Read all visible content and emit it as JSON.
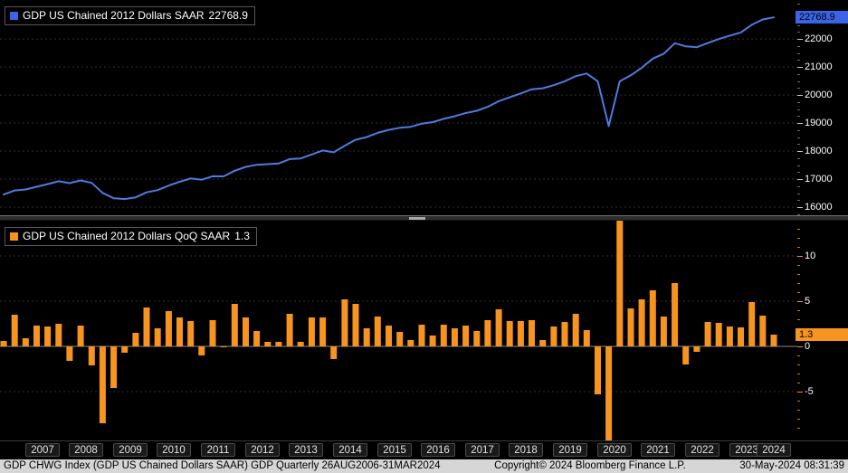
{
  "colors": {
    "background": "#000000",
    "line_blue": "#4d7ce0",
    "accent_blue": "#3b64e6",
    "bar_orange": "#f79420",
    "grid": "#303030",
    "zero_line": "#8a8a8a",
    "status_bar_bg": "#d6d6d6"
  },
  "top_panel": {
    "legend_label": "GDP US Chained 2012 Dollars SAAR",
    "legend_value": "22768.9",
    "last_value": "22768.9",
    "axis_ticks": [
      16000,
      17000,
      18000,
      19000,
      20000,
      21000,
      22000
    ]
  },
  "bottom_panel": {
    "legend_label": "GDP US Chained 2012 Dollars QoQ SAAR",
    "legend_value": "1.3",
    "last_value": "1.3",
    "axis_ticks": [
      -5,
      0,
      5,
      10
    ]
  },
  "x_axis": {
    "years": [
      "2007",
      "2008",
      "2009",
      "2010",
      "2011",
      "2012",
      "2013",
      "2014",
      "2015",
      "2016",
      "2017",
      "2018",
      "2019",
      "2020",
      "2021",
      "2022",
      "2023",
      "2024"
    ]
  },
  "status_bar": {
    "left": "GDP CHWG Index (GDP US Chained Dollars SAAR) GDP  Quarterly 26AUG2006-31MAR2024",
    "center": "Copyright© 2024 Bloomberg Finance L.P.",
    "right": "30-May-2024 08:31:39"
  },
  "chart_data": [
    {
      "type": "line",
      "title": "GDP US Chained 2012 Dollars SAAR",
      "legend_position": "top-left",
      "grid": "horizontal-dotted",
      "ylim": [
        15710,
        23390
      ],
      "yticks": [
        16000,
        17000,
        18000,
        19000,
        20000,
        21000,
        22000
      ],
      "color": "#4d7ce0",
      "last_value": 22768.9,
      "categories": [
        "2006 Q3",
        "2006 Q4",
        "2007 Q1",
        "2007 Q2",
        "2007 Q3",
        "2007 Q4",
        "2008 Q1",
        "2008 Q2",
        "2008 Q3",
        "2008 Q4",
        "2009 Q1",
        "2009 Q2",
        "2009 Q3",
        "2009 Q4",
        "2010 Q1",
        "2010 Q2",
        "2010 Q3",
        "2010 Q4",
        "2011 Q1",
        "2011 Q2",
        "2011 Q3",
        "2011 Q4",
        "2012 Q1",
        "2012 Q2",
        "2012 Q3",
        "2012 Q4",
        "2013 Q1",
        "2013 Q2",
        "2013 Q3",
        "2013 Q4",
        "2014 Q1",
        "2014 Q2",
        "2014 Q3",
        "2014 Q4",
        "2015 Q1",
        "2015 Q2",
        "2015 Q3",
        "2015 Q4",
        "2016 Q1",
        "2016 Q2",
        "2016 Q3",
        "2016 Q4",
        "2017 Q1",
        "2017 Q2",
        "2017 Q3",
        "2017 Q4",
        "2018 Q1",
        "2018 Q2",
        "2018 Q3",
        "2018 Q4",
        "2019 Q1",
        "2019 Q2",
        "2019 Q3",
        "2019 Q4",
        "2020 Q1",
        "2020 Q2",
        "2020 Q3",
        "2020 Q4",
        "2021 Q1",
        "2021 Q2",
        "2021 Q3",
        "2021 Q4",
        "2022 Q1",
        "2022 Q2",
        "2022 Q3",
        "2022 Q4",
        "2023 Q1",
        "2023 Q2",
        "2023 Q3",
        "2023 Q4",
        "2024 Q1"
      ],
      "values": [
        16450,
        16594,
        16631,
        16727,
        16819,
        16924,
        16856,
        16953,
        16864,
        16506,
        16316,
        16288,
        16349,
        16525,
        16607,
        16769,
        16904,
        17022,
        16979,
        17102,
        17098,
        17299,
        17437,
        17511,
        17533,
        17555,
        17713,
        17735,
        17877,
        18020,
        17957,
        18191,
        18405,
        18497,
        18649,
        18757,
        18832,
        18865,
        18978,
        19035,
        19149,
        19245,
        19356,
        19438,
        19579,
        19779,
        19918,
        20058,
        20204,
        20239,
        20350,
        20488,
        20672,
        20765,
        20490,
        18892,
        20488,
        20703,
        20973,
        21298,
        21473,
        21849,
        21739,
        21707,
        21854,
        21996,
        22117,
        22232,
        22505,
        22696,
        22768.9
      ]
    },
    {
      "type": "bar",
      "title": "GDP US Chained 2012 Dollars QoQ SAAR",
      "legend_position": "top-left",
      "grid": "horizontal-dotted-with-solid-zero",
      "ylim": [
        -10.4,
        13.9
      ],
      "yticks": [
        -5,
        0,
        5,
        10
      ],
      "color": "#f79420",
      "last_value": 1.3,
      "note": "2020 Q2 and 2020 Q3 bars exceed axis range and are clipped at panel edges",
      "categories": [
        "2006 Q3",
        "2006 Q4",
        "2007 Q1",
        "2007 Q2",
        "2007 Q3",
        "2007 Q4",
        "2008 Q1",
        "2008 Q2",
        "2008 Q3",
        "2008 Q4",
        "2009 Q1",
        "2009 Q2",
        "2009 Q3",
        "2009 Q4",
        "2010 Q1",
        "2010 Q2",
        "2010 Q3",
        "2010 Q4",
        "2011 Q1",
        "2011 Q2",
        "2011 Q3",
        "2011 Q4",
        "2012 Q1",
        "2012 Q2",
        "2012 Q3",
        "2012 Q4",
        "2013 Q1",
        "2013 Q2",
        "2013 Q3",
        "2013 Q4",
        "2014 Q1",
        "2014 Q2",
        "2014 Q3",
        "2014 Q4",
        "2015 Q1",
        "2015 Q2",
        "2015 Q3",
        "2015 Q4",
        "2016 Q1",
        "2016 Q2",
        "2016 Q3",
        "2016 Q4",
        "2017 Q1",
        "2017 Q2",
        "2017 Q3",
        "2017 Q4",
        "2018 Q1",
        "2018 Q2",
        "2018 Q3",
        "2018 Q4",
        "2019 Q1",
        "2019 Q2",
        "2019 Q3",
        "2019 Q4",
        "2020 Q1",
        "2020 Q2",
        "2020 Q3",
        "2020 Q4",
        "2021 Q1",
        "2021 Q2",
        "2021 Q3",
        "2021 Q4",
        "2022 Q1",
        "2022 Q2",
        "2022 Q3",
        "2022 Q4",
        "2023 Q1",
        "2023 Q2",
        "2023 Q3",
        "2023 Q4",
        "2024 Q1"
      ],
      "values": [
        0.6,
        3.5,
        0.9,
        2.3,
        2.2,
        2.5,
        -1.6,
        2.3,
        -2.1,
        -8.5,
        -4.6,
        -0.7,
        1.5,
        4.3,
        2.0,
        3.9,
        3.2,
        2.8,
        -1.0,
        2.9,
        -0.1,
        4.7,
        3.2,
        1.7,
        0.5,
        0.5,
        3.6,
        0.5,
        3.2,
        3.2,
        -1.4,
        5.2,
        4.7,
        2.0,
        3.3,
        2.3,
        1.6,
        0.7,
        2.4,
        1.2,
        2.4,
        2.0,
        2.3,
        1.7,
        2.9,
        4.1,
        2.8,
        2.8,
        2.9,
        0.7,
        2.2,
        2.7,
        3.6,
        1.8,
        -5.3,
        -31.2,
        33.8,
        4.2,
        5.2,
        6.2,
        3.3,
        7.0,
        -2.0,
        -0.6,
        2.7,
        2.6,
        2.2,
        2.1,
        4.9,
        3.4,
        1.3
      ]
    }
  ]
}
